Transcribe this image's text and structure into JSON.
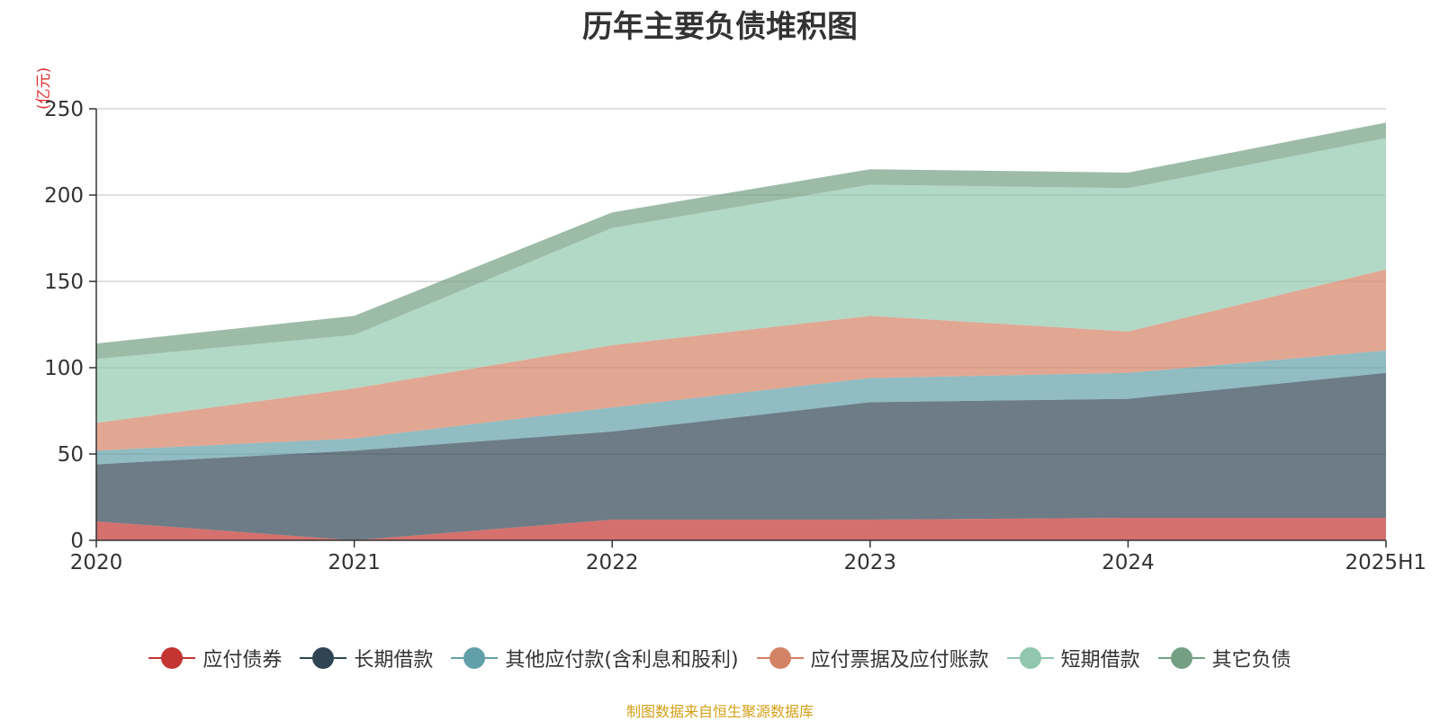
{
  "chart_data": {
    "type": "area",
    "stacked": true,
    "title": "历年主要负债堆积图",
    "unit_label": "(亿元)",
    "categories": [
      "2020",
      "2021",
      "2022",
      "2023",
      "2024",
      "2025H1"
    ],
    "yticks": [
      "0",
      "50",
      "100",
      "150",
      "200",
      "250"
    ],
    "ylim": [
      0,
      250
    ],
    "grid": true,
    "legend_position": "bottom",
    "series": [
      {
        "name": "应付债券",
        "color": "#c23531",
        "values": [
          11,
          0,
          12,
          12,
          13,
          13
        ]
      },
      {
        "name": "长期借款",
        "color": "#2f4554",
        "values": [
          33,
          52,
          51,
          68,
          69,
          84
        ]
      },
      {
        "name": "其他应付款(含利息和股利)",
        "color": "#61a0a8",
        "values": [
          8,
          7,
          14,
          14,
          15,
          13
        ]
      },
      {
        "name": "应付票据及应付账款",
        "color": "#d48265",
        "values": [
          16,
          29,
          36,
          36,
          24,
          47
        ]
      },
      {
        "name": "短期借款",
        "color": "#91c7ae",
        "values": [
          37,
          31,
          68,
          76,
          83,
          76
        ]
      },
      {
        "name": "其它负债",
        "color": "#749f83",
        "values": [
          9,
          11,
          9,
          9,
          9,
          9
        ]
      }
    ]
  },
  "footer": {
    "source": "制图数据来自恒生聚源数据库"
  }
}
